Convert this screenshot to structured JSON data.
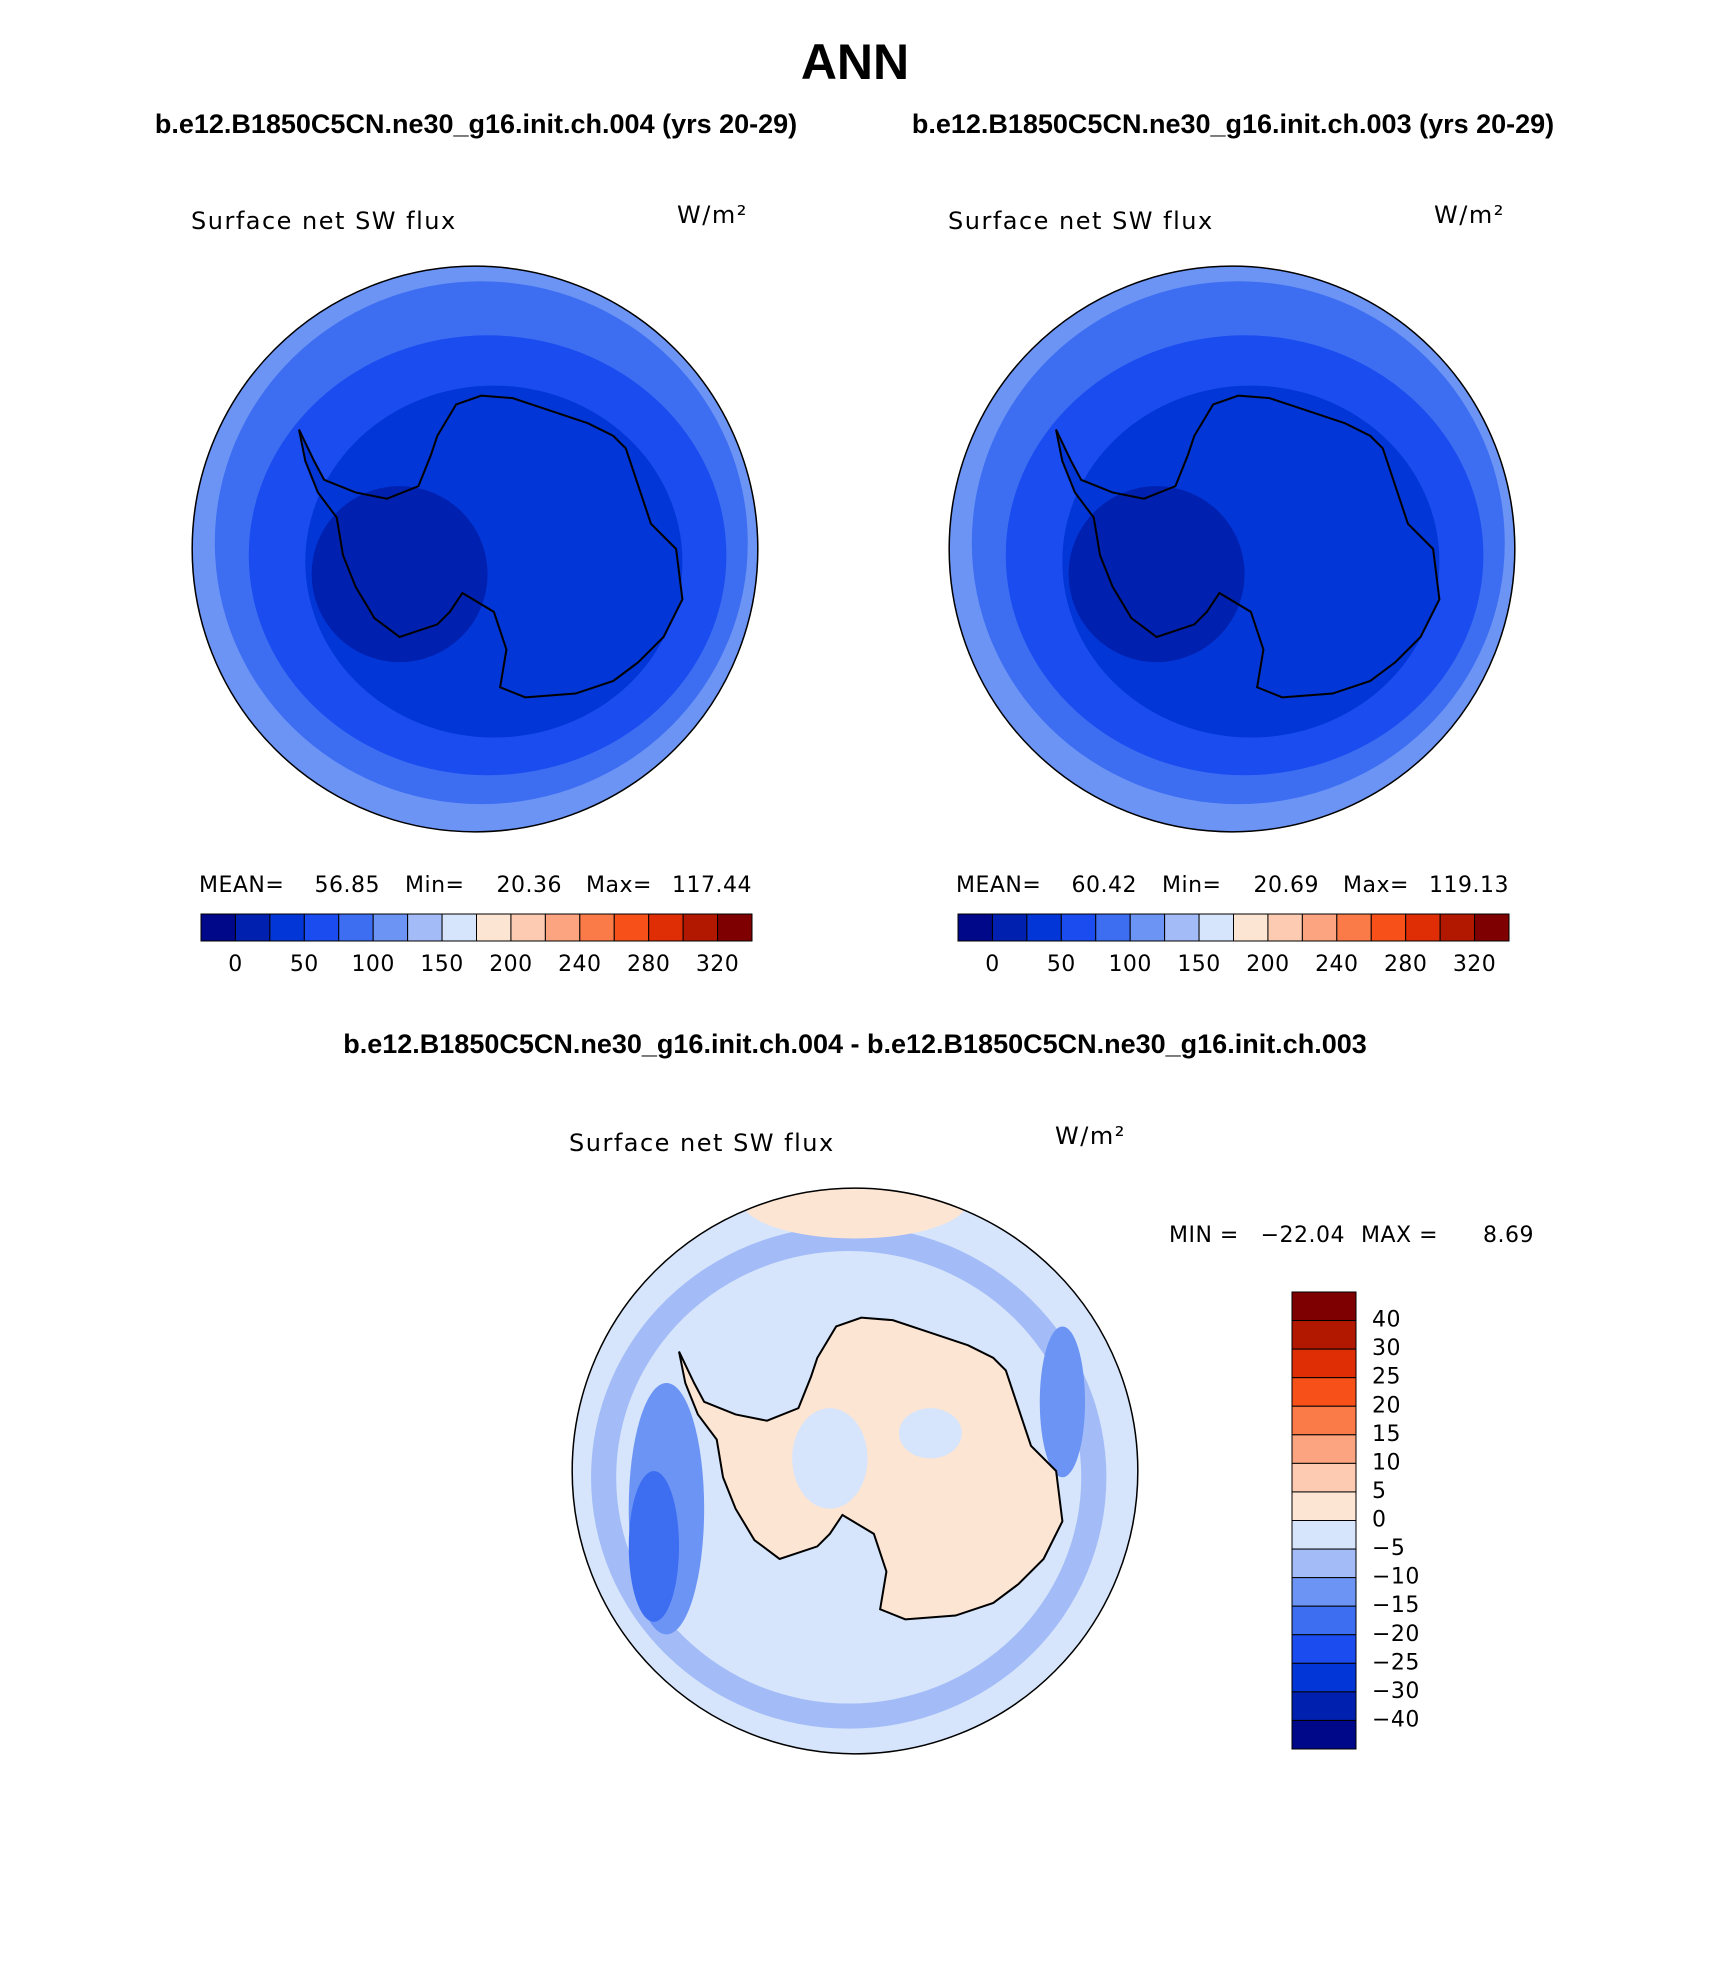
{
  "title": "ANN",
  "panels": [
    {
      "case": "b.e12.B1850C5CN.ne30_g16.init.ch.004 (yrs 20-29)",
      "variable": "Surface net SW flux",
      "units": "W/m²",
      "mean_label": "MEAN=",
      "mean": 56.85,
      "min_label": "Min=",
      "min": 20.36,
      "max_label": "Max=",
      "max": 117.44
    },
    {
      "case": "b.e12.B1850C5CN.ne30_g16.init.ch.003 (yrs 20-29)",
      "variable": "Surface net SW flux",
      "units": "W/m²",
      "mean_label": "MEAN=",
      "mean": 60.42,
      "min_label": "Min=",
      "min": 20.69,
      "max_label": "Max=",
      "max": 119.13
    }
  ],
  "colorbar": {
    "colors": [
      "#00088a",
      "#0020b0",
      "#0236d6",
      "#1a4cef",
      "#3d6ef2",
      "#6c94f5",
      "#a3bcf8",
      "#d6e5fb",
      "#fde5d3",
      "#fdcbb1",
      "#fca47f",
      "#fb7b48",
      "#f75119",
      "#df2d05",
      "#b21800",
      "#7f0000"
    ],
    "labels": [
      "0",
      null,
      "50",
      null,
      "100",
      null,
      "150",
      null,
      "200",
      null,
      "240",
      null,
      "280",
      null,
      "320"
    ]
  },
  "difference": {
    "title": "b.e12.B1850C5CN.ne30_g16.init.ch.004 - b.e12.B1850C5CN.ne30_g16.init.ch.003",
    "variable": "Surface net SW flux",
    "units": "W/m²",
    "min_label": "MIN =",
    "min": "−22.04",
    "max_label": "MAX =",
    "max": "8.69",
    "colors": [
      "#7f0000",
      "#b21800",
      "#df2d05",
      "#f75119",
      "#fb7b48",
      "#fca47f",
      "#fdcbb1",
      "#fde5d3",
      "#d6e5fb",
      "#a3bcf8",
      "#6c94f5",
      "#3d6ef2",
      "#1a4cef",
      "#0236d6",
      "#0020b0",
      "#00088a"
    ],
    "labels": [
      "40",
      "30",
      "25",
      "20",
      "15",
      "10",
      "5",
      "0",
      "−5",
      "−10",
      "−15",
      "−20",
      "−25",
      "−30",
      "−40"
    ]
  }
}
